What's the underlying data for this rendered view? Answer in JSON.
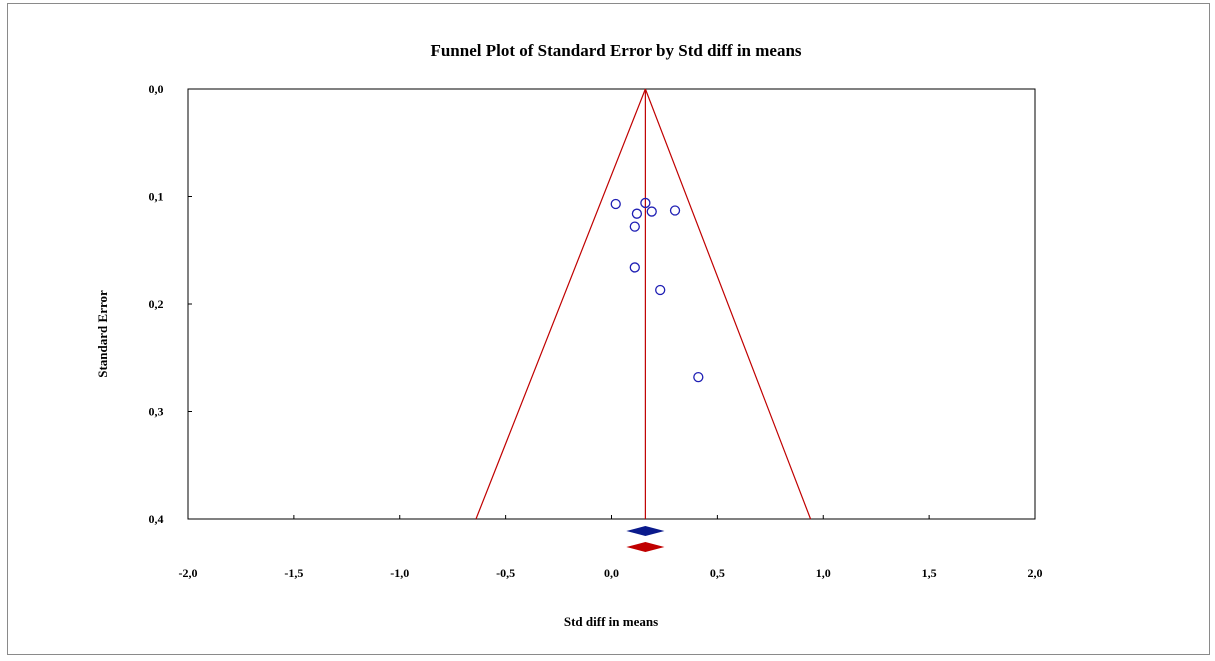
{
  "chart_data": {
    "type": "scatter",
    "title": "Funnel Plot of Standard Error by Std diff in means",
    "xlabel": "Std diff in means",
    "ylabel": "Standard Error",
    "xlim": [
      -2.0,
      2.0
    ],
    "ylim": [
      0.0,
      0.4
    ],
    "y_inverted": true,
    "x_ticks": [
      -2.0,
      -1.5,
      -1.0,
      -0.5,
      0.0,
      0.5,
      1.0,
      1.5,
      2.0
    ],
    "x_tick_labels": [
      "-2,0",
      "-1,5",
      "-1,0",
      "-0,5",
      "0,0",
      "0,5",
      "1,0",
      "1,5",
      "2,0"
    ],
    "y_ticks": [
      0.0,
      0.1,
      0.2,
      0.3,
      0.4
    ],
    "y_tick_labels": [
      "0,0",
      "0,1",
      "0,2",
      "0,3",
      "0,4"
    ],
    "grid": false,
    "funnel": {
      "center": 0.16,
      "apex_se": 0.0,
      "base_se": 0.4,
      "lower_at_base": -0.64,
      "upper_at_base": 0.94,
      "color": "#c00000"
    },
    "points": [
      {
        "x": 0.02,
        "y": 0.107
      },
      {
        "x": 0.16,
        "y": 0.106
      },
      {
        "x": 0.12,
        "y": 0.116
      },
      {
        "x": 0.19,
        "y": 0.114
      },
      {
        "x": 0.3,
        "y": 0.113
      },
      {
        "x": 0.11,
        "y": 0.128
      },
      {
        "x": 0.11,
        "y": 0.166
      },
      {
        "x": 0.23,
        "y": 0.187
      },
      {
        "x": 0.41,
        "y": 0.268
      }
    ],
    "point_color": "#1f1fb4",
    "summary_diamonds": [
      {
        "center": 0.16,
        "half_width": 0.09,
        "color": "#0a1a8c"
      },
      {
        "center": 0.16,
        "half_width": 0.09,
        "color": "#c00000"
      }
    ]
  }
}
